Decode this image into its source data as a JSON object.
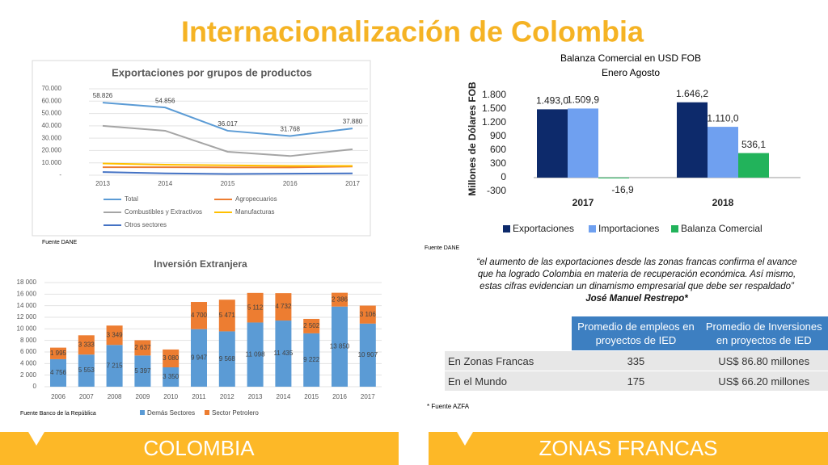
{
  "title": "Internacionalización de Colombia",
  "chart_data": [
    {
      "type": "line",
      "title": "Exportaciones por grupos de productos",
      "categories": [
        "2013",
        "2014",
        "2015",
        "2016",
        "2017"
      ],
      "ylim": [
        0,
        70000
      ],
      "yticks": [
        {
          "value": 0,
          "label": "-"
        },
        {
          "value": 10000,
          "label": "10.000"
        },
        {
          "value": 20000,
          "label": "20.000"
        },
        {
          "value": 30000,
          "label": "30.000"
        },
        {
          "value": 40000,
          "label": "40.000"
        },
        {
          "value": 50000,
          "label": "50.000"
        },
        {
          "value": 60000,
          "label": "60.000"
        },
        {
          "value": 70000,
          "label": "70.000"
        }
      ],
      "grid": true,
      "series": [
        {
          "name": "Total",
          "color": "#5b9bd5",
          "values": [
            58826,
            54856,
            36017,
            31768,
            37880
          ],
          "value_labels": [
            "58.826",
            "54.856",
            "36.017",
            "31.768",
            "37.880"
          ]
        },
        {
          "name": "Agropecuarios",
          "color": "#ed7d31",
          "values": [
            6500,
            6500,
            6300,
            6300,
            7000
          ]
        },
        {
          "name": "Combustibles y Extractivos",
          "color": "#a5a5a5",
          "values": [
            40000,
            36000,
            19000,
            15500,
            21000
          ]
        },
        {
          "name": "Manufacturas",
          "color": "#ffc000",
          "values": [
            9500,
            8500,
            8000,
            7500,
            7500
          ]
        },
        {
          "name": "Otros sectores",
          "color": "#4472c4",
          "values": [
            2500,
            1500,
            1000,
            1200,
            1500
          ]
        }
      ],
      "source": "Fuente DANE"
    },
    {
      "type": "bar",
      "title": "Balanza Comercial en USD FOB",
      "subtitle": "Enero Agosto",
      "ylabel": "Millones de Dólares FOB",
      "categories": [
        "2017",
        "2018"
      ],
      "ylim": [
        -300,
        1800
      ],
      "yticks": [
        {
          "value": 1800,
          "label": "1.800"
        },
        {
          "value": 1500,
          "label": "1.500"
        },
        {
          "value": 1200,
          "label": "1.200"
        },
        900,
        600,
        300,
        0,
        -300
      ],
      "series": [
        {
          "name": "Exportaciones",
          "color": "#0d2a6b",
          "values": [
            1493.0,
            1646.2
          ],
          "value_labels": [
            "1.493,0",
            "1.646,2"
          ]
        },
        {
          "name": "Importaciones",
          "color": "#6fa0f0",
          "values": [
            1509.9,
            1110.0
          ],
          "value_labels": [
            "1.509,9",
            "1.110,0"
          ]
        },
        {
          "name": "Balanza Comercial",
          "color": "#22b35b",
          "values": [
            -16.9,
            536.1
          ],
          "value_labels": [
            "-16,9",
            "536,1"
          ]
        }
      ],
      "source": "Fuente DANE"
    },
    {
      "type": "stacked_bar",
      "title": "Inversión Extranjera",
      "categories": [
        "2006",
        "2007",
        "2008",
        "2009",
        "2010",
        "2011",
        "2012",
        "2013",
        "2014",
        "2015",
        "2016",
        "2017"
      ],
      "ylim": [
        0,
        18000
      ],
      "yticks": [
        0,
        {
          "value": 2000,
          "label": "2 000"
        },
        {
          "value": 4000,
          "label": "4 000"
        },
        {
          "value": 6000,
          "label": "6 000"
        },
        {
          "value": 8000,
          "label": "8 000"
        },
        {
          "value": 10000,
          "label": "10 000"
        },
        {
          "value": 12000,
          "label": "12 000"
        },
        {
          "value": 14000,
          "label": "14 000"
        },
        {
          "value": 16000,
          "label": "16 000"
        },
        {
          "value": 18000,
          "label": "18 000"
        }
      ],
      "grid": true,
      "series": [
        {
          "name": "Demás Sectores",
          "color": "#5b9bd5",
          "values": [
            4756,
            5553,
            7215,
            5397,
            3350,
            9947,
            9568,
            11098,
            11435,
            9222,
            13850,
            10907
          ],
          "value_labels": [
            "4 756",
            "5 553",
            "7 215",
            "5 397",
            "3 350",
            "9 947",
            "9 568",
            "11 098",
            "11 435",
            "9 222",
            "13 850",
            "10 907"
          ]
        },
        {
          "name": "Sector Petrolero",
          "color": "#ed7d31",
          "values": [
            1995,
            3333,
            3349,
            2637,
            3080,
            4700,
            5471,
            5112,
            4732,
            2502,
            2386,
            3106
          ],
          "value_labels": [
            "1 995",
            "3 333",
            "3 349",
            "2 637",
            "3 080",
            "4 700",
            "5 471",
            "5 112",
            "4 732",
            "2 502",
            "2 386",
            "3 106"
          ]
        }
      ],
      "source": "Fuente Banco de la República"
    }
  ],
  "quote": {
    "text": "“el aumento de las exportaciones desde las zonas francas confirma el avance que ha logrado Colombia en materia de recuperación económica. Así mismo, estas cifras evidencian un dinamismo empresarial que debe ser respaldado”",
    "author": "José Manuel Restrepo*"
  },
  "table": {
    "header": [
      "Promedio de empleos en proyectos de IED",
      "Promedio de Inversiones en proyectos de IED"
    ],
    "rows": [
      [
        "En Zonas Francas",
        "335",
        "US$ 86.80 millones"
      ],
      [
        "En el Mundo",
        "175",
        "US$ 66.20 millones"
      ]
    ],
    "source": "* Fuente AZFA"
  },
  "banners": [
    "COLOMBIA",
    "ZONAS FRANCAS"
  ]
}
